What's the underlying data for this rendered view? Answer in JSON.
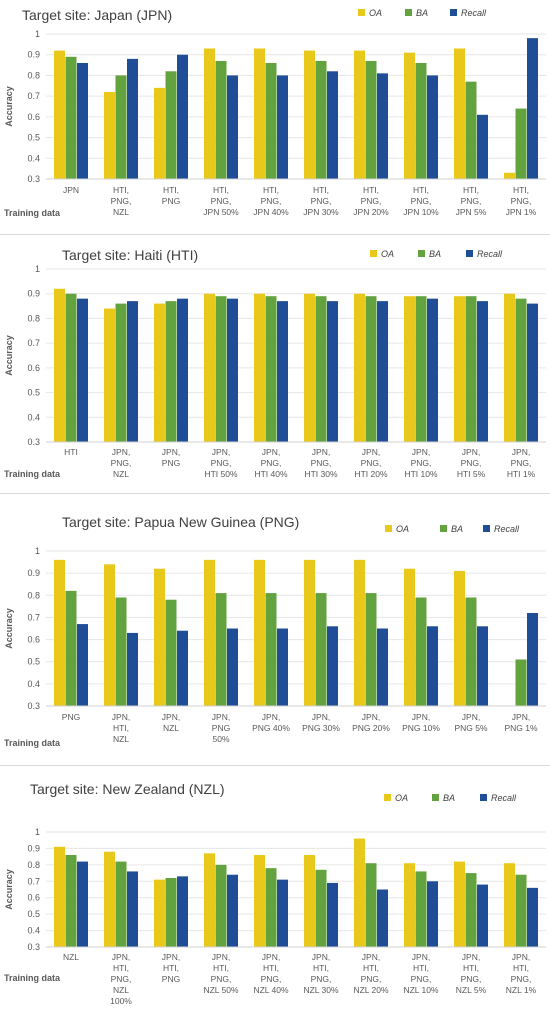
{
  "legend_labels": [
    "OA",
    "BA",
    "Recall"
  ],
  "colors": {
    "OA": "#e8c81a",
    "BA": "#62a33f",
    "Recall": "#1f4e96",
    "grid": "#e6e6e6",
    "text": "#595959"
  },
  "chart_data": [
    {
      "type": "bar",
      "title": "Target site: Japan (JPN)",
      "ylabel": "Accuracy",
      "xlabel": "Training data",
      "ylim": [
        0.3,
        1.0
      ],
      "yticks": [
        "0.3",
        "0.4",
        "0.5",
        "0.6",
        "0.7",
        "0.8",
        "0.9",
        "1"
      ],
      "legend_position": "top-right",
      "categories": [
        "JPN",
        "HTI,\nPNG,\nNZL",
        "HTI,\nPNG",
        "HTI,\nPNG,\nJPN 50%",
        "HTI,\nPNG,\nJPN 40%",
        "HTI,\nPNG,\nJPN 30%",
        "HTI,\nPNG,\nJPN 20%",
        "HTI,\nPNG,\nJPN 10%",
        "HTI,\nPNG,\nJPN 5%",
        "HTI,\nPNG,\nJPN 1%"
      ],
      "series": [
        {
          "name": "OA",
          "values": [
            0.92,
            0.72,
            0.74,
            0.93,
            0.93,
            0.92,
            0.92,
            0.91,
            0.93,
            0.33
          ]
        },
        {
          "name": "BA",
          "values": [
            0.89,
            0.8,
            0.82,
            0.87,
            0.86,
            0.87,
            0.87,
            0.86,
            0.77,
            0.64
          ]
        },
        {
          "name": "Recall",
          "values": [
            0.86,
            0.88,
            0.9,
            0.8,
            0.8,
            0.82,
            0.81,
            0.8,
            0.61,
            0.98
          ]
        }
      ]
    },
    {
      "type": "bar",
      "title": "Target site: Haiti (HTI)",
      "ylabel": "Accuracy",
      "xlabel": "Training data",
      "ylim": [
        0.3,
        1.0
      ],
      "yticks": [
        "0.3",
        "0.4",
        "0.5",
        "0.6",
        "0.7",
        "0.8",
        "0.9",
        "1"
      ],
      "legend_position": "top-right",
      "categories": [
        "HTI",
        "JPN,\nPNG,\nNZL",
        "JPN,\nPNG",
        "JPN,\nPNG,\nHTI 50%",
        "JPN,\nPNG,\nHTI 40%",
        "JPN,\nPNG,\nHTI 30%",
        "JPN,\nPNG,\nHTI 20%",
        "JPN,\nPNG,\nHTI 10%",
        "JPN,\nPNG,\nHTI 5%",
        "JPN,\nPNG,\nHTI 1%"
      ],
      "series": [
        {
          "name": "OA",
          "values": [
            0.92,
            0.84,
            0.86,
            0.9,
            0.9,
            0.9,
            0.9,
            0.89,
            0.89,
            0.9
          ]
        },
        {
          "name": "BA",
          "values": [
            0.9,
            0.86,
            0.87,
            0.89,
            0.89,
            0.89,
            0.89,
            0.89,
            0.89,
            0.88
          ]
        },
        {
          "name": "Recall",
          "values": [
            0.88,
            0.87,
            0.88,
            0.88,
            0.87,
            0.87,
            0.87,
            0.88,
            0.87,
            0.86
          ]
        }
      ]
    },
    {
      "type": "bar",
      "title": "Target site: Papua New Guinea (PNG)",
      "ylabel": "Accuracy",
      "xlabel": "Training data",
      "ylim": [
        0.3,
        1.0
      ],
      "yticks": [
        "0.3",
        "0.4",
        "0.5",
        "0.6",
        "0.7",
        "0.8",
        "0.9",
        "1"
      ],
      "legend_position": "top-right",
      "categories": [
        "PNG",
        "JPN,\nHTI,\nNZL",
        "JPN,\nNZL",
        "JPN,\nPNG\n50%",
        "JPN,\nPNG 40%",
        "JPN,\nPNG 30%",
        "JPN,\nPNG 20%",
        "JPN,\nPNG 10%",
        "JPN,\nPNG 5%",
        "JPN,\nPNG 1%"
      ],
      "series": [
        {
          "name": "OA",
          "values": [
            0.96,
            0.94,
            0.92,
            0.96,
            0.96,
            0.96,
            0.96,
            0.92,
            0.91,
            0.3
          ]
        },
        {
          "name": "BA",
          "values": [
            0.82,
            0.79,
            0.78,
            0.81,
            0.81,
            0.81,
            0.81,
            0.79,
            0.79,
            0.51
          ]
        },
        {
          "name": "Recall",
          "values": [
            0.67,
            0.63,
            0.64,
            0.65,
            0.65,
            0.66,
            0.65,
            0.66,
            0.66,
            0.72
          ]
        }
      ]
    },
    {
      "type": "bar",
      "title": "Target site: New Zealand (NZL)",
      "ylabel": "Accuracy",
      "xlabel": "Training data",
      "ylim": [
        0.3,
        1.0
      ],
      "yticks": [
        "0.3",
        "0.4",
        "0.5",
        "0.6",
        "0.7",
        "0.8",
        "0.9",
        "1"
      ],
      "legend_position": "top-right",
      "categories": [
        "NZL",
        "JPN,\nHTI,\nPNG,\nNZL\n100%",
        "JPN,\nHTI,\nPNG",
        "JPN,\nHTI,\nPNG,\nNZL 50%",
        "JPN,\nHTI,\nPNG,\nNZL 40%",
        "JPN,\nHTI,\nPNG,\nNZL 30%",
        "JPN,\nHTI,\nPNG,\nNZL 20%",
        "JPN,\nHTI,\nPNG,\nNZL 10%",
        "JPN,\nHTI,\nPNG,\nNZL 5%",
        "JPN,\nHTI,\nPNG,\nNZL 1%"
      ],
      "series": [
        {
          "name": "OA",
          "values": [
            0.91,
            0.88,
            0.71,
            0.87,
            0.86,
            0.86,
            0.96,
            0.81,
            0.82,
            0.81
          ]
        },
        {
          "name": "BA",
          "values": [
            0.86,
            0.82,
            0.72,
            0.8,
            0.78,
            0.77,
            0.81,
            0.76,
            0.75,
            0.74
          ]
        },
        {
          "name": "Recall",
          "values": [
            0.82,
            0.76,
            0.73,
            0.74,
            0.71,
            0.69,
            0.65,
            0.7,
            0.68,
            0.66
          ]
        }
      ]
    }
  ]
}
